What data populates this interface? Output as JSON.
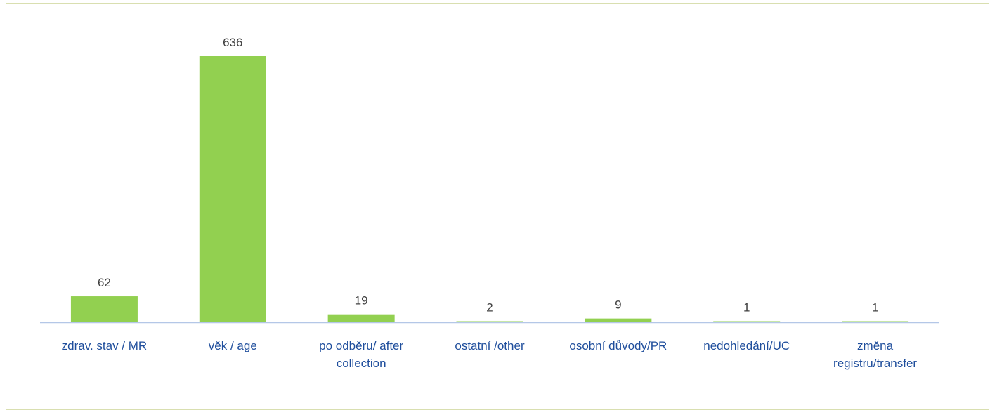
{
  "chart_data": {
    "type": "bar",
    "categories": [
      [
        "zdrav. stav / MR"
      ],
      [
        "věk / age"
      ],
      [
        "po odběru/ after",
        "collection"
      ],
      [
        "ostatní /other"
      ],
      [
        "osobní důvody/PR"
      ],
      [
        "nedohledání/UC"
      ],
      [
        "změna",
        "registru/transfer"
      ]
    ],
    "values": [
      62,
      636,
      19,
      2,
      9,
      1,
      1
    ],
    "ylim": [
      0,
      636
    ],
    "bar_color": "#92d050",
    "axis_color": "#b4c7e7",
    "label_color": "#1f4e9c",
    "value_color": "#404040",
    "grid": false,
    "legend": false
  }
}
